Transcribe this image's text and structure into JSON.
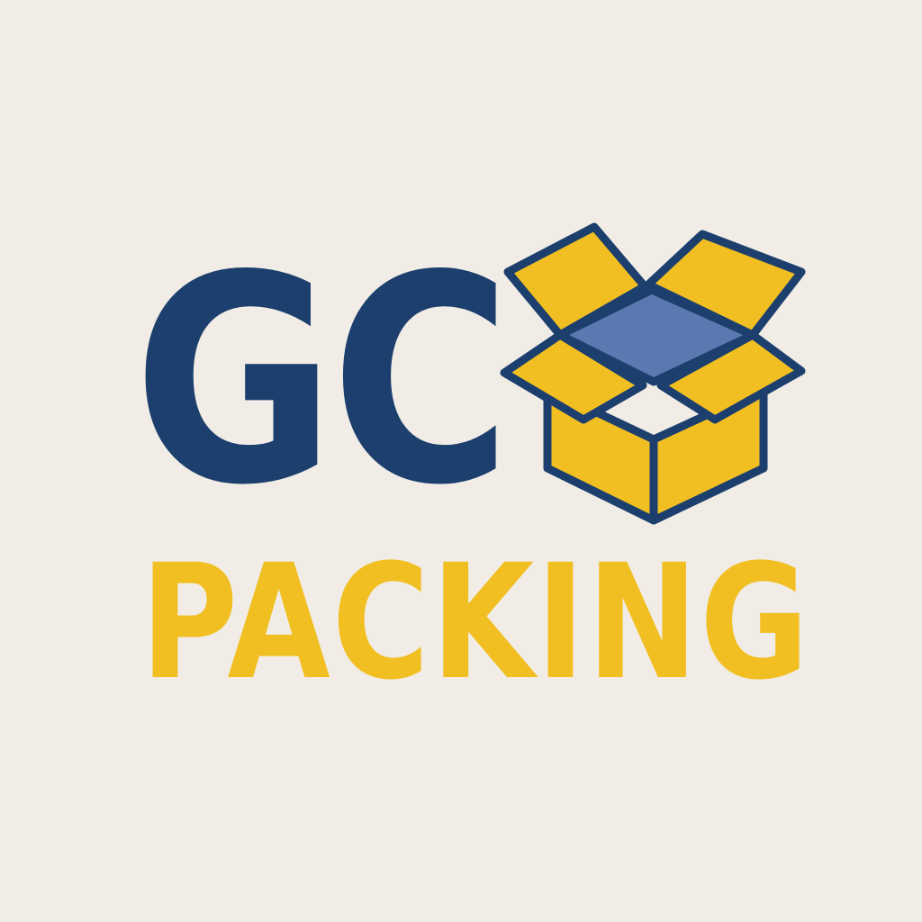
{
  "logo": {
    "primary_text": "GC",
    "secondary_text": "PACKING",
    "icon": "open-box-icon"
  },
  "colors": {
    "background": "#f1ede6",
    "navy": "#1c3f6e",
    "yellow": "#f1bf22",
    "box_interior": "#5b79b0"
  }
}
